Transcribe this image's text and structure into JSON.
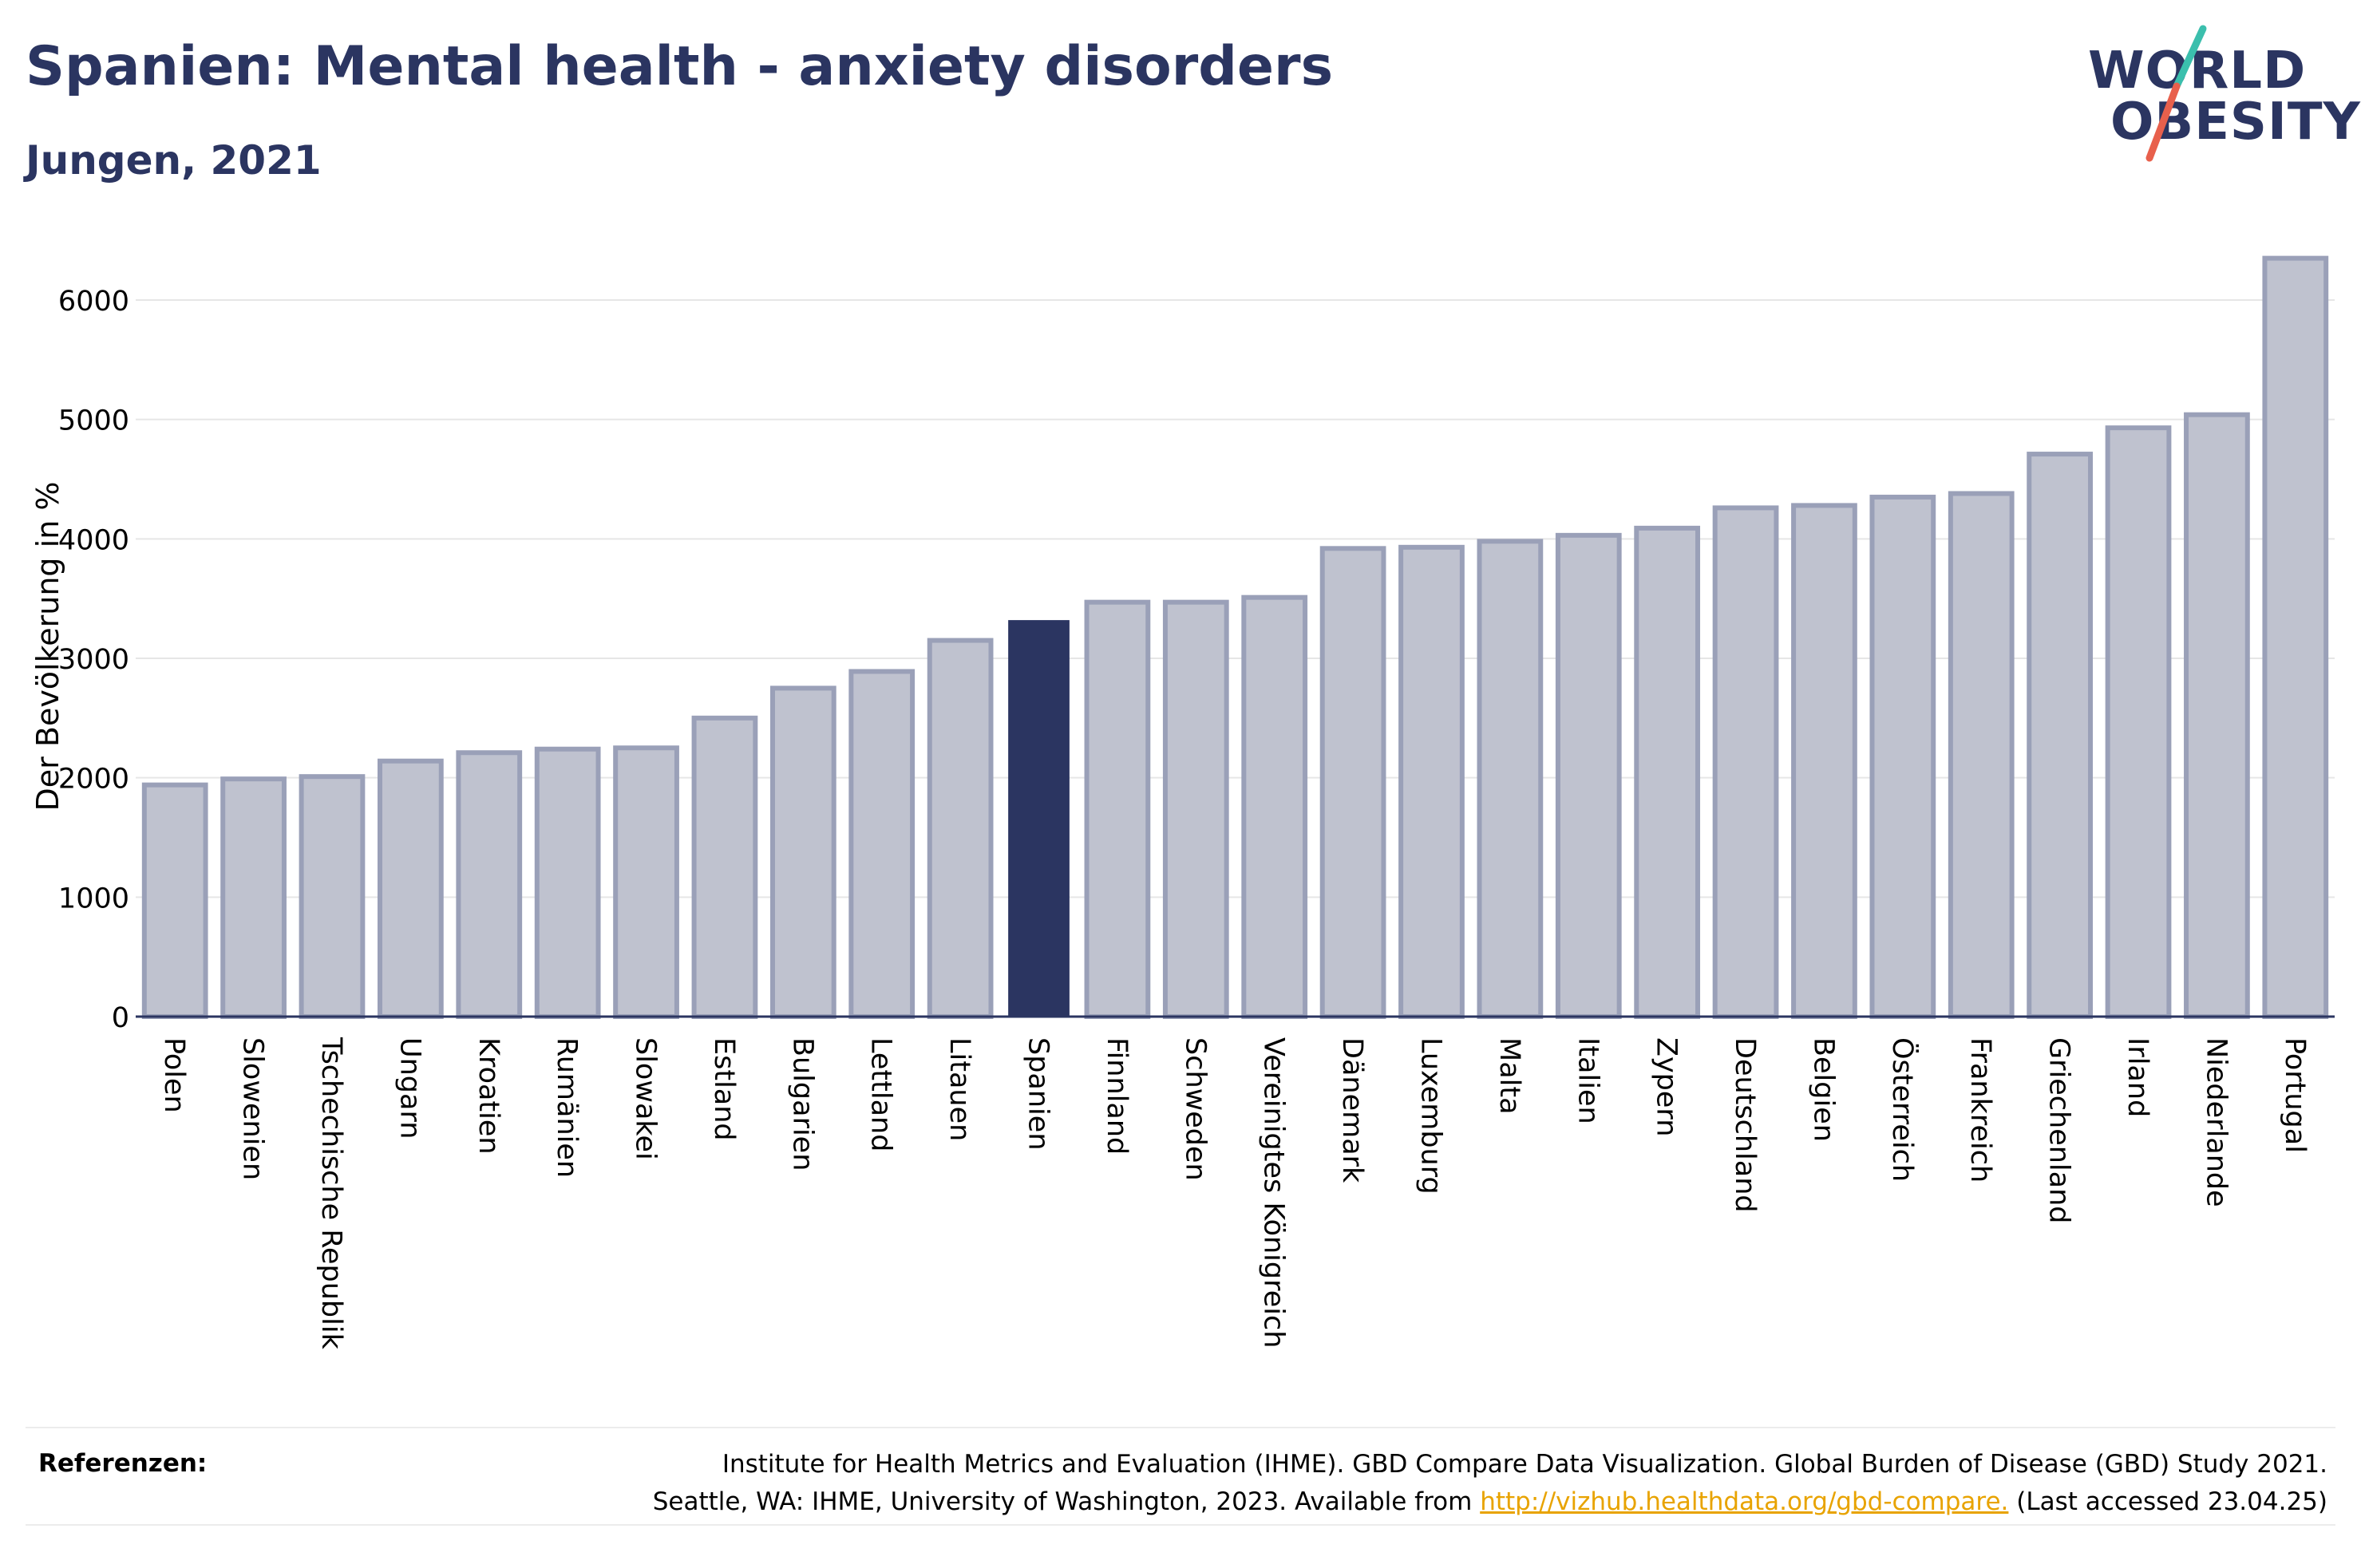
{
  "header": {
    "title": "Spanien: Mental health - anxiety disorders",
    "subtitle": "Jungen, 2021"
  },
  "logo": {
    "line1": "WORLD",
    "line2": "OBESITY",
    "colors": {
      "text": "#2b3561",
      "slash_top": "#3bbfad",
      "slash_bottom": "#e8604c"
    }
  },
  "colors": {
    "highlight_bar": "#2b3561",
    "bar_fill": "#bfc2cf",
    "bar_stroke": "#9aa0b8",
    "grid": "#e6e6e6",
    "axis": "#2b3561",
    "link": "#e8a300"
  },
  "chart_data": {
    "type": "bar",
    "title": "Spanien: Mental health - anxiety disorders",
    "subtitle": "Jungen, 2021",
    "ylabel": "Der Bevölkerung in %",
    "xlabel": "",
    "ylim": [
      0,
      6500
    ],
    "yticks": [
      0,
      1000,
      2000,
      3000,
      4000,
      5000,
      6000
    ],
    "grid": true,
    "highlight": "Spanien",
    "categories": [
      "Polen",
      "Slowenien",
      "Tschechische Republik",
      "Ungarn",
      "Kroatien",
      "Rumänien",
      "Slowakei",
      "Estland",
      "Bulgarien",
      "Lettland",
      "Litauen",
      "Spanien",
      "Finnland",
      "Schweden",
      "Vereinigtes Königreich",
      "Dänemark",
      "Luxemburg",
      "Malta",
      "Italien",
      "Zypern",
      "Deutschland",
      "Belgien",
      "Österreich",
      "Frankreich",
      "Griechenland",
      "Irland",
      "Niederlande",
      "Portugal"
    ],
    "values": [
      1940,
      1990,
      2010,
      2140,
      2210,
      2240,
      2250,
      2500,
      2750,
      2890,
      3150,
      3320,
      3470,
      3470,
      3510,
      3920,
      3930,
      3980,
      4030,
      4090,
      4260,
      4280,
      4350,
      4380,
      4710,
      4930,
      5040,
      6350
    ]
  },
  "references": {
    "label": "Referenzen:",
    "line1": "Institute for Health Metrics and Evaluation (IHME). GBD Compare Data Visualization. Global Burden of Disease (GBD) Study 2021.",
    "line2_prefix": "Seattle, WA: IHME, University of Washington, 2023. Available from ",
    "link": "http://vizhub.healthdata.org/gbd-compare.",
    "line2_suffix": " (Last accessed 23.04.25)"
  }
}
